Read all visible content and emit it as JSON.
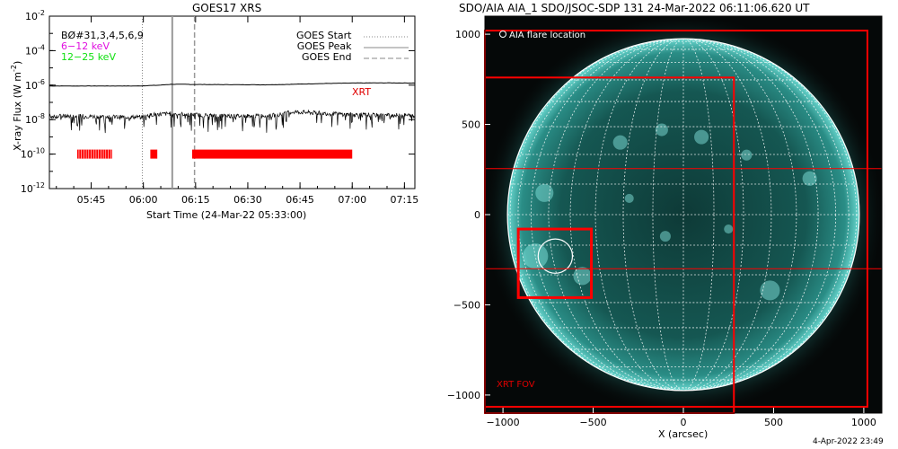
{
  "footer_date": "4-Apr-2022 23:49",
  "chart_data": [
    {
      "type": "line",
      "title": "GOES17 XRS",
      "xlabel": "Start Time (24-Mar-22 05:33:00)",
      "ylabel": "X-ray Flux (W m",
      "ylabel_sup": "-2",
      "ylabel_tail": ")",
      "y_scale": "log",
      "ylim_exp": [
        -12,
        -2
      ],
      "y_ticks": [
        {
          "base": "10",
          "exp": "-2",
          "value": -2
        },
        {
          "base": "10",
          "exp": "-4",
          "value": -4
        },
        {
          "base": "10",
          "exp": "-6",
          "value": -6
        },
        {
          "base": "10",
          "exp": "-8",
          "value": -8
        },
        {
          "base": "10",
          "exp": "-10",
          "value": -10
        },
        {
          "base": "10",
          "exp": "-12",
          "value": -12
        }
      ],
      "xlim_minutes": [
        0,
        105
      ],
      "x_ticks": [
        {
          "label": "05:45",
          "min": 12
        },
        {
          "label": "06:00",
          "min": 27
        },
        {
          "label": "06:15",
          "min": 42
        },
        {
          "label": "06:30",
          "min": 57
        },
        {
          "label": "06:45",
          "min": 72
        },
        {
          "label": "07:00",
          "min": 87
        },
        {
          "label": "07:15",
          "min": 102
        }
      ],
      "legend_left": [
        {
          "text": "BØ#31,3,4,5,6,9",
          "color": "#000000"
        },
        {
          "text": "6−12 keV",
          "color": "#e010e0"
        },
        {
          "text": "12−25 keV",
          "color": "#10e010"
        }
      ],
      "legend_right": [
        {
          "text": "GOES Start",
          "style": "dotted"
        },
        {
          "text": "GOES Peak",
          "style": "solid"
        },
        {
          "text": "GOES End",
          "style": "dashed"
        }
      ],
      "markers": {
        "start_min": 26.7,
        "peak_min": 35.3,
        "end_min": 41.7
      },
      "xrt_label": "XRT",
      "series": [
        {
          "name": "long",
          "color": "#000000",
          "points": [
            [
              0,
              -6.05
            ],
            [
              25,
              -6.05
            ],
            [
              32,
              -6.0
            ],
            [
              35,
              -5.95
            ],
            [
              50,
              -5.97
            ],
            [
              62,
              -5.98
            ],
            [
              70,
              -5.95
            ],
            [
              80,
              -5.9
            ],
            [
              88,
              -5.88
            ],
            [
              96,
              -5.87
            ],
            [
              105,
              -5.88
            ]
          ]
        },
        {
          "name": "short",
          "color": "#000000",
          "points": [
            [
              0,
              -7.8
            ],
            [
              10,
              -7.8
            ],
            [
              20,
              -7.85
            ],
            [
              26,
              -7.85
            ],
            [
              30,
              -7.7
            ],
            [
              35,
              -7.65
            ],
            [
              45,
              -7.75
            ],
            [
              55,
              -7.8
            ],
            [
              65,
              -7.75
            ],
            [
              70,
              -7.55
            ],
            [
              75,
              -7.6
            ],
            [
              85,
              -7.7
            ],
            [
              95,
              -7.75
            ],
            [
              105,
              -7.75
            ]
          ]
        }
      ],
      "xrt_coverage": [
        [
          8,
          18
        ],
        [
          29,
          31
        ],
        [
          41,
          87
        ]
      ]
    },
    {
      "type": "image",
      "title": "SDO/AIA AIA_1 SDO/JSOC-SDP 131 24-Mar-2022 06:11:06.620 UT",
      "xlabel": "X (arcsec)",
      "xlim": [
        -1100,
        1100
      ],
      "ylim": [
        -1100,
        1100
      ],
      "x_ticks": [
        {
          "label": "−1000",
          "value": -1000
        },
        {
          "label": "−500",
          "value": -500
        },
        {
          "label": "0",
          "value": 0
        },
        {
          "label": "500",
          "value": 500
        },
        {
          "label": "1000",
          "value": 1000
        }
      ],
      "y_ticks": [
        {
          "label": "1000",
          "value": 1000
        },
        {
          "label": "500",
          "value": 500
        },
        {
          "label": "0",
          "value": 0
        },
        {
          "label": "−500",
          "value": -500
        },
        {
          "label": "−1000",
          "value": -1000
        }
      ],
      "legend": "AIA flare location",
      "xrt_label": "XRT FOV",
      "solar_radius_arcsec": 975,
      "flare_location": [
        -710,
        -230
      ],
      "flare_circle_radius": 95,
      "red_boxes": [
        {
          "x0": -1100,
          "x1": 1020,
          "y0": -1065,
          "y1": 1020
        },
        {
          "x0": -1100,
          "x1": 280,
          "y0": -1100,
          "y1": 760
        },
        {
          "x0": -915,
          "x1": -510,
          "y0": -460,
          "y1": -80
        }
      ],
      "red_hlines": [
        255,
        -300
      ]
    }
  ]
}
